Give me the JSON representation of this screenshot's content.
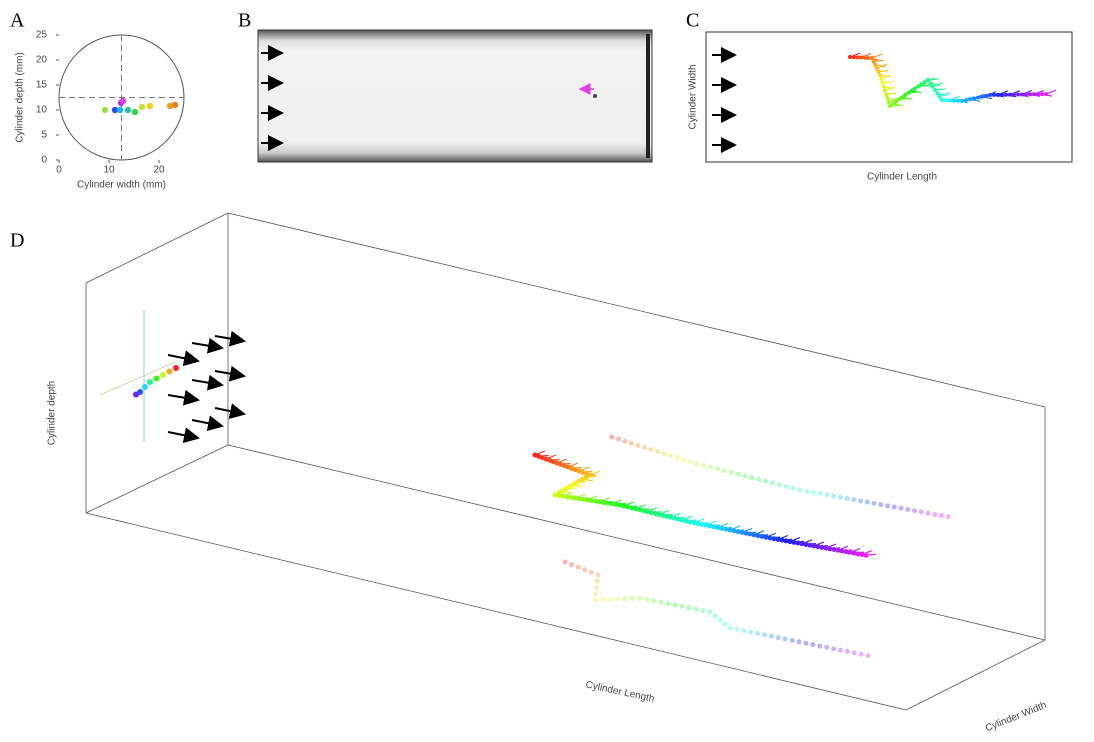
{
  "chart_data": [
    {
      "type": "scatter",
      "xlabel": "Cylinder width (mm)",
      "ylabel": "Cylinder depth (mm)",
      "x": [
        9.2,
        11.2,
        12.2,
        12.4,
        12.8,
        13.8,
        15.2,
        16.6,
        18.2,
        22.2,
        23.2
      ],
      "y": [
        10,
        10,
        10,
        11.4,
        11.8,
        10,
        9.6,
        10.6,
        10.8,
        10.8,
        11
      ],
      "colors": [
        "#9be04a",
        "#2a4cf0",
        "#19b8e0",
        "#a03cf0",
        "#e040e0",
        "#20c8a0",
        "#30d050",
        "#c8e030",
        "#f0d020",
        "#f0a020",
        "#e88020"
      ],
      "xlim": [
        0,
        25
      ],
      "ylim": [
        0,
        25
      ],
      "xticks": [
        0,
        10,
        20
      ],
      "yticks": [
        0,
        5,
        10,
        15,
        20,
        25
      ]
    }
  ],
  "figure": {
    "panel_labels": [
      "A",
      "B",
      "C",
      "D"
    ],
    "panel_c": {
      "xlabel": "Cylinder Length",
      "ylabel": "Cylinder Width"
    },
    "panel_d": {
      "xlabel": "Cylinder Length",
      "ylabel": "Cylinder depth",
      "zlabel": "Cylinder Width"
    }
  }
}
